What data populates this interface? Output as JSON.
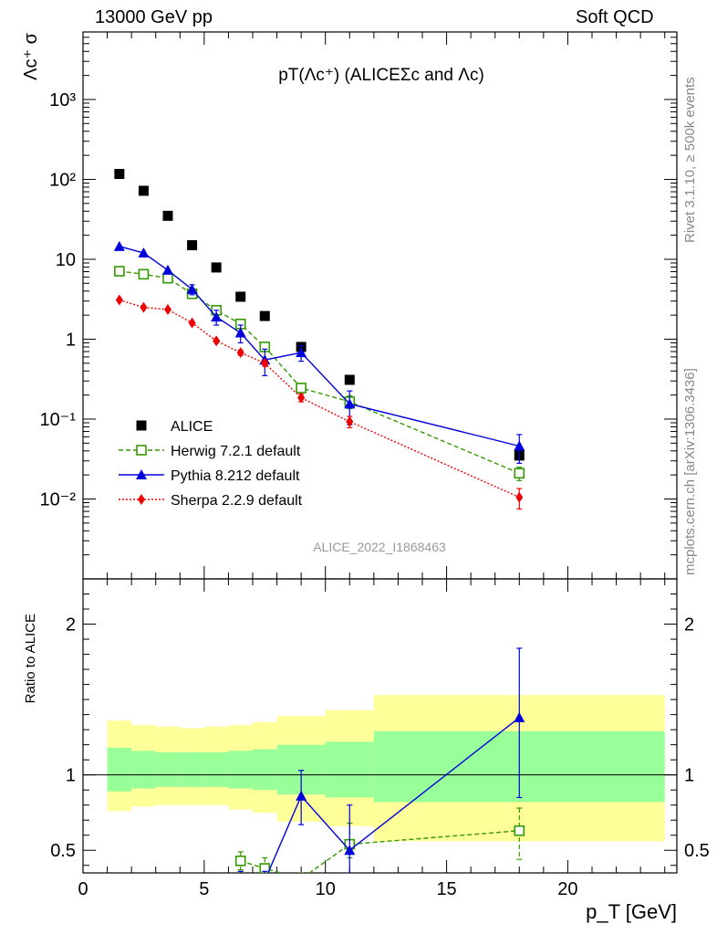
{
  "header": {
    "left": "13000 GeV pp",
    "right": "Soft QCD"
  },
  "side_labels": {
    "rivet": "Rivet 3.1.10, ≥ 500k events",
    "mcplots": "mcplots.cern.ch [arXiv:1306.3436]"
  },
  "chart_data": [
    {
      "type": "scatter",
      "panel": "main",
      "title": "pT(Λc⁺) (ALICEΣc and Λc)",
      "ylabel": "Λc⁺ σ",
      "xlabel": "",
      "watermark": "ALICE_2022_I1868463",
      "yscale": "log",
      "ylim": [
        0.001,
        7000
      ],
      "xlim": [
        0,
        24.5
      ],
      "y_tick_labels": [
        "10⁻²",
        "10⁻¹",
        "1",
        "10",
        "10²",
        "10³"
      ],
      "legend_position": "lower-left",
      "series": [
        {
          "name": "ALICE",
          "color": "#000000",
          "marker": "square",
          "line": "none",
          "x": [
            1.5,
            2.5,
            3.5,
            4.5,
            5.5,
            6.5,
            7.5,
            9.0,
            11.0,
            18.0
          ],
          "y": [
            117,
            72,
            35,
            15,
            7.9,
            3.4,
            1.95,
            0.8,
            0.31,
            0.035
          ]
        },
        {
          "name": "Herwig 7.2.1 default",
          "color": "#339900",
          "marker": "open-square",
          "line": "dashed",
          "x": [
            1.5,
            2.5,
            3.5,
            4.5,
            5.5,
            6.5,
            7.5,
            9.0,
            11.0,
            18.0
          ],
          "y": [
            7.1,
            6.5,
            5.8,
            3.7,
            2.3,
            1.55,
            0.8,
            0.245,
            0.165,
            0.021
          ],
          "yerr": [
            0,
            0,
            0,
            0,
            0,
            0.1,
            0.06,
            0.03,
            0.03,
            0.004
          ]
        },
        {
          "name": "Pythia 8.212 default",
          "color": "#0000dd",
          "marker": "triangle",
          "line": "solid",
          "x": [
            1.5,
            2.5,
            3.5,
            4.5,
            5.5,
            6.5,
            7.5,
            9.0,
            11.0,
            18.0
          ],
          "y": [
            14.5,
            12.0,
            7.3,
            4.2,
            1.9,
            1.2,
            0.55,
            0.68,
            0.155,
            0.046
          ],
          "yerr": [
            0,
            0,
            0,
            0.6,
            0.4,
            0.3,
            0.2,
            0.15,
            0.07,
            0.018
          ]
        },
        {
          "name": "Sherpa 2.2.9 default",
          "color": "#ee0000",
          "marker": "diamond",
          "line": "dotted",
          "x": [
            1.5,
            2.5,
            3.5,
            4.5,
            5.5,
            6.5,
            7.5,
            9.0,
            11.0,
            18.0
          ],
          "y": [
            3.1,
            2.5,
            2.35,
            1.6,
            0.95,
            0.68,
            0.5,
            0.185,
            0.093,
            0.0105
          ],
          "yerr": [
            0,
            0,
            0,
            0,
            0,
            0.05,
            0.04,
            0.02,
            0.015,
            0.003
          ]
        }
      ]
    },
    {
      "type": "line",
      "panel": "ratio",
      "ylabel": "Ratio to ALICE",
      "xlabel": "p_T [GeV]",
      "xlim": [
        0,
        24.5
      ],
      "ylim": [
        0.35,
        2.3
      ],
      "x_ticks": [
        0,
        5,
        10,
        15,
        20
      ],
      "y_ticks": [
        0.5,
        1,
        2
      ],
      "reference_line": 1,
      "bands": {
        "edges": [
          1,
          2,
          3,
          4,
          5,
          6,
          7,
          8,
          10,
          12,
          24
        ],
        "yellow_low": [
          0.76,
          0.79,
          0.8,
          0.8,
          0.8,
          0.77,
          0.75,
          0.69,
          0.66,
          0.56
        ],
        "yellow_high": [
          1.36,
          1.33,
          1.32,
          1.31,
          1.32,
          1.33,
          1.35,
          1.39,
          1.43,
          1.53
        ],
        "green_low": [
          0.89,
          0.91,
          0.92,
          0.92,
          0.92,
          0.91,
          0.9,
          0.87,
          0.85,
          0.82
        ],
        "green_high": [
          1.18,
          1.16,
          1.15,
          1.15,
          1.15,
          1.16,
          1.17,
          1.2,
          1.22,
          1.29
        ]
      },
      "series": [
        {
          "name": "Herwig 7.2.1 default",
          "color": "#339900",
          "marker": "open-square",
          "line": "dashed",
          "x": [
            6.5,
            7.5,
            9.0,
            11.0,
            18.0
          ],
          "y": [
            0.43,
            0.38,
            0.31,
            0.54,
            0.63
          ],
          "ylo": [
            0.37,
            0.33,
            0.27,
            0.45,
            0.44
          ],
          "yhi": [
            0.49,
            0.45,
            0.35,
            0.68,
            0.78
          ]
        },
        {
          "name": "Pythia 8.212 default",
          "color": "#0000dd",
          "marker": "triangle",
          "line": "solid",
          "x": [
            6.5,
            7.5,
            9.0,
            11.0,
            18.0
          ],
          "y": [
            0.3,
            0.3,
            0.86,
            0.5,
            1.38
          ],
          "ylo": [
            0.25,
            0.25,
            0.67,
            0.32,
            0.85
          ],
          "yhi": [
            0.36,
            0.36,
            1.03,
            0.8,
            1.84
          ]
        }
      ]
    }
  ]
}
